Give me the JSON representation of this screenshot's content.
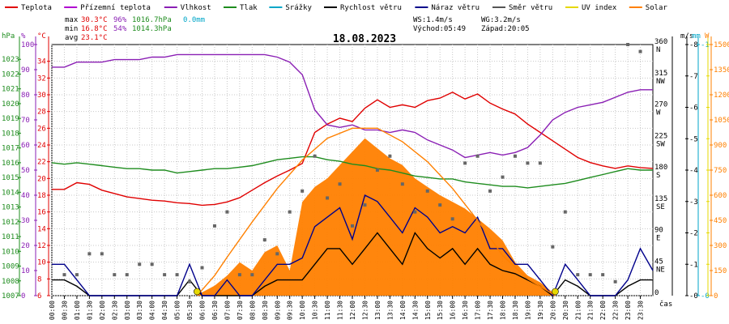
{
  "legend": [
    {
      "label": "Teplota",
      "color": "#e00000"
    },
    {
      "label": "Přízemní teplota",
      "color": "#b000d0"
    },
    {
      "label": "Vlhkost",
      "color": "#8a1fb4"
    },
    {
      "label": "Tlak",
      "color": "#1e8c1e"
    },
    {
      "label": "Srážky",
      "color": "#00a6c8"
    },
    {
      "label": "Rychlost větru",
      "color": "#000000"
    },
    {
      "label": "Náraz větru",
      "color": "#00008b"
    },
    {
      "label": "Směr větru",
      "color": "#555555"
    },
    {
      "label": "UV index",
      "color": "#e6d800"
    },
    {
      "label": "Solar",
      "color": "#ff8000"
    }
  ],
  "stats": {
    "max_label": "max",
    "max_temp": "30.3°C",
    "max_hum": "96%",
    "max_press": "1016.7hPa",
    "max_rain": "0.0mm",
    "min_label": "min",
    "min_temp": "16.8°C",
    "min_hum": "54%",
    "min_press": "1014.3hPa",
    "avg_label": "avg",
    "avg_temp": "23.1°C"
  },
  "wind_info": {
    "ws": "WS:1.4m/s",
    "wg": "WG:3.2m/s",
    "sunrise": "Východ:05:49",
    "sunset": "Západ:20:05"
  },
  "chart_data": {
    "type": "line",
    "title": "18.08.2023",
    "xlabel": "čas",
    "x_ticks": [
      "00:00",
      "00:30",
      "01:00",
      "01:30",
      "02:00",
      "02:30",
      "03:00",
      "03:30",
      "04:00",
      "04:30",
      "05:00",
      "05:30",
      "06:00",
      "06:30",
      "07:00",
      "07:30",
      "08:00",
      "08:30",
      "09:00",
      "09:30",
      "10:00",
      "10:30",
      "11:00",
      "11:30",
      "12:00",
      "12:30",
      "13:00",
      "13:30",
      "14:00",
      "14:30",
      "15:00",
      "15:30",
      "16:00",
      "16:30",
      "17:00",
      "17:30",
      "18:00",
      "18:30",
      "19:00",
      "19:30",
      "20:00",
      "20:30",
      "21:00",
      "21:30",
      "22:00",
      "22:30",
      "23:00",
      "23:30"
    ],
    "axes": {
      "hpa": {
        "label": "hPa",
        "color": "#1e8c1e",
        "range": [
          1007,
          1024
        ],
        "ticks": [
          1007,
          1008,
          1009,
          1010,
          1011,
          1012,
          1013,
          1014,
          1015,
          1016,
          1017,
          1018,
          1019,
          1020,
          1021,
          1022,
          1023
        ]
      },
      "pct": {
        "label": "%",
        "color": "#8a1fb4",
        "range": [
          0,
          100
        ],
        "ticks": [
          0,
          10,
          20,
          30,
          40,
          50,
          60,
          70,
          80,
          90,
          100
        ]
      },
      "temp": {
        "label": "°C",
        "color": "#e00000",
        "range": [
          6,
          36
        ],
        "ticks": [
          6,
          8,
          10,
          12,
          14,
          16,
          18,
          20,
          22,
          24,
          26,
          28,
          30,
          32,
          34
        ]
      },
      "deg": {
        "labels": [
          "0",
          "45 NE",
          "90 E",
          "135 SE",
          "180 S",
          "225 SW",
          "270 W",
          "315 NW",
          "360 N"
        ],
        "range": [
          0,
          360
        ]
      },
      "ms": {
        "label": "m/s",
        "color": "#000000",
        "range": [
          0,
          8
        ],
        "ticks": [
          0,
          1,
          2,
          3,
          4,
          5,
          6,
          7,
          8
        ]
      },
      "mm": {
        "label": "mm",
        "color": "#00a6c8",
        "range": [
          0,
          1
        ],
        "ticks": [
          0,
          1
        ]
      },
      "uv": {
        "color": "#e6d800",
        "range": [
          0,
          8
        ],
        "ticks": [
          0,
          1,
          2,
          3,
          4,
          5,
          6,
          7,
          8
        ]
      },
      "w": {
        "label": "W",
        "color": "#ff8000",
        "range": [
          0,
          1500
        ],
        "ticks": [
          0,
          150,
          300,
          450,
          600,
          750,
          900,
          1050,
          1200,
          1350,
          1500
        ]
      }
    },
    "series": [
      {
        "name": "Teplota",
        "axis": "temp",
        "color": "#e00000",
        "x": [
          0,
          0.5,
          1,
          1.5,
          2,
          2.5,
          3,
          3.5,
          4,
          4.5,
          5,
          5.5,
          6,
          6.5,
          7,
          7.5,
          8,
          8.5,
          9,
          9.5,
          10,
          10.5,
          11,
          11.5,
          12,
          12.5,
          13,
          13.5,
          14,
          14.5,
          15,
          15.5,
          16,
          16.5,
          17,
          17.5,
          18,
          18.5,
          19,
          19.5,
          20,
          20.5,
          21,
          21.5,
          22,
          22.5,
          23,
          23.5,
          24
        ],
        "y": [
          18.7,
          18.7,
          19.5,
          19.3,
          18.6,
          18.2,
          17.8,
          17.6,
          17.4,
          17.3,
          17.1,
          17.0,
          16.8,
          16.9,
          17.2,
          17.7,
          18.6,
          19.5,
          20.3,
          21.0,
          21.8,
          25.5,
          26.5,
          27.2,
          26.8,
          28.4,
          29.4,
          28.5,
          28.8,
          28.5,
          29.3,
          29.6,
          30.3,
          29.5,
          30.1,
          29.0,
          28.3,
          27.7,
          26.5,
          25.5,
          24.5,
          23.5,
          22.5,
          21.9,
          21.5,
          21.2,
          21.5,
          21.3,
          21.2
        ]
      },
      {
        "name": "Vlhkost",
        "axis": "pct",
        "color": "#8a1fb4",
        "x": [
          0,
          0.5,
          1,
          1.5,
          2,
          2.5,
          3,
          3.5,
          4,
          4.5,
          5,
          5.5,
          6,
          6.5,
          7,
          7.5,
          8,
          8.5,
          9,
          9.5,
          10,
          10.5,
          11,
          11.5,
          12,
          12.5,
          13,
          13.5,
          14,
          14.5,
          15,
          15.5,
          16,
          16.5,
          17,
          17.5,
          18,
          18.5,
          19,
          19.5,
          20,
          20.5,
          21,
          21.5,
          22,
          22.5,
          23,
          23.5,
          24
        ],
        "y": [
          91,
          91,
          93,
          93,
          93,
          94,
          94,
          94,
          95,
          95,
          96,
          96,
          96,
          96,
          96,
          96,
          96,
          96,
          95,
          93,
          88,
          74,
          68,
          67,
          68,
          66,
          66,
          65,
          66,
          65,
          62,
          60,
          58,
          55,
          56,
          57,
          56,
          57,
          59,
          64,
          70,
          73,
          75,
          76,
          77,
          79,
          81,
          82,
          82
        ]
      },
      {
        "name": "Tlak",
        "axis": "hpa",
        "color": "#1e8c1e",
        "x": [
          0,
          0.5,
          1,
          1.5,
          2,
          2.5,
          3,
          3.5,
          4,
          4.5,
          5,
          5.5,
          6,
          6.5,
          7,
          7.5,
          8,
          8.5,
          9,
          9.5,
          10,
          10.5,
          11,
          11.5,
          12,
          12.5,
          13,
          13.5,
          14,
          14.5,
          15,
          15.5,
          16,
          16.5,
          17,
          17.5,
          18,
          18.5,
          19,
          19.5,
          20,
          20.5,
          21,
          21.5,
          22,
          22.5,
          23,
          23.5,
          24
        ],
        "y": [
          1016.0,
          1015.9,
          1016.0,
          1015.9,
          1015.8,
          1015.7,
          1015.6,
          1015.6,
          1015.5,
          1015.5,
          1015.3,
          1015.4,
          1015.5,
          1015.6,
          1015.6,
          1015.7,
          1015.8,
          1016.0,
          1016.2,
          1016.3,
          1016.4,
          1016.4,
          1016.2,
          1016.1,
          1015.9,
          1015.8,
          1015.6,
          1015.5,
          1015.3,
          1015.1,
          1015.0,
          1014.9,
          1014.9,
          1014.7,
          1014.6,
          1014.5,
          1014.4,
          1014.4,
          1014.3,
          1014.4,
          1014.5,
          1014.6,
          1014.8,
          1015.0,
          1015.2,
          1015.4,
          1015.6,
          1015.5,
          1015.5
        ]
      },
      {
        "name": "Rychlost větru",
        "axis": "ms",
        "color": "#000000",
        "x": [
          0,
          0.5,
          1,
          1.5,
          2,
          2.5,
          3,
          3.5,
          4,
          4.5,
          5,
          5.5,
          6,
          6.5,
          7,
          7.5,
          8,
          8.5,
          9,
          9.5,
          10,
          10.5,
          11,
          11.5,
          12,
          12.5,
          13,
          13.5,
          14,
          14.5,
          15,
          15.5,
          16,
          16.5,
          17,
          17.5,
          18,
          18.5,
          19,
          19.5,
          20,
          20.5,
          21,
          21.5,
          22,
          22.5,
          23,
          23.5,
          24
        ],
        "y": [
          0.5,
          0.5,
          0.3,
          0,
          0,
          0,
          0,
          0,
          0,
          0,
          0,
          0.5,
          0,
          0,
          0,
          0,
          0,
          0.3,
          0.5,
          0.5,
          0.5,
          1.0,
          1.5,
          1.5,
          1.0,
          1.5,
          2.0,
          1.5,
          1.0,
          2.0,
          1.5,
          1.2,
          1.5,
          1.0,
          1.5,
          1.0,
          0.8,
          0.7,
          0.5,
          0.3,
          0,
          0.5,
          0.3,
          0,
          0,
          0,
          0.3,
          0.5,
          0.5
        ]
      },
      {
        "name": "Náraz větru",
        "axis": "ms",
        "color": "#00008b",
        "x": [
          0,
          0.5,
          1,
          1.5,
          2,
          2.5,
          3,
          3.5,
          4,
          4.5,
          5,
          5.5,
          6,
          6.5,
          7,
          7.5,
          8,
          8.5,
          9,
          9.5,
          10,
          10.5,
          11,
          11.5,
          12,
          12.5,
          13,
          13.5,
          14,
          14.5,
          15,
          15.5,
          16,
          16.5,
          17,
          17.5,
          18,
          18.5,
          19,
          19.5,
          20,
          20.5,
          21,
          21.5,
          22,
          22.5,
          23,
          23.5,
          24
        ],
        "y": [
          1.0,
          1.0,
          0.5,
          0,
          0,
          0,
          0,
          0,
          0,
          0,
          0,
          1.0,
          0,
          0,
          0.5,
          0,
          0,
          0.5,
          1.0,
          1.0,
          1.2,
          2.2,
          2.5,
          2.8,
          1.8,
          3.2,
          3.0,
          2.5,
          2.0,
          2.8,
          2.5,
          2.0,
          2.2,
          2.0,
          2.5,
          1.5,
          1.5,
          1.0,
          1.0,
          0.5,
          0,
          1.0,
          0.5,
          0,
          0,
          0,
          0.5,
          1.5,
          0.8
        ]
      },
      {
        "name": "Solar",
        "axis": "w",
        "color": "#ff8000",
        "fill": true,
        "x": [
          5.8,
          6,
          6.5,
          7,
          7.5,
          8,
          8.5,
          9,
          9.5,
          10,
          10.5,
          11,
          11.5,
          12,
          12.5,
          13,
          13.5,
          14,
          14.5,
          15,
          15.5,
          16,
          16.5,
          17,
          17.5,
          18,
          18.5,
          19,
          19.5,
          20,
          20.1
        ],
        "y": [
          0,
          20,
          60,
          120,
          200,
          150,
          260,
          300,
          150,
          560,
          650,
          700,
          780,
          860,
          940,
          880,
          820,
          780,
          700,
          650,
          600,
          560,
          520,
          460,
          400,
          330,
          200,
          120,
          80,
          20,
          0
        ]
      },
      {
        "name": "Solar (teoretický)",
        "axis": "w",
        "color": "#ff8000",
        "fill": false,
        "x": [
          5.8,
          6.5,
          7,
          8,
          9,
          10,
          11,
          12,
          13,
          14,
          15,
          16,
          17,
          18,
          19,
          20,
          20.1
        ],
        "y": [
          0,
          120,
          230,
          440,
          640,
          810,
          940,
          1000,
          1000,
          920,
          800,
          640,
          450,
          240,
          100,
          10,
          0
        ]
      }
    ],
    "scatter": {
      "name": "Směr větru",
      "axis": "deg",
      "color": "#666666",
      "x": [
        0.5,
        1,
        1.5,
        2,
        2.5,
        3,
        3.5,
        4,
        4.5,
        5,
        5.5,
        6,
        6.5,
        7,
        7.5,
        8,
        8.5,
        9,
        9.5,
        10,
        10.5,
        11,
        11.5,
        12,
        12.5,
        13,
        13.5,
        14,
        14.5,
        15,
        15.5,
        16,
        16.5,
        17,
        17.5,
        18,
        18.5,
        19,
        19.5,
        20,
        20.5,
        21,
        21.5,
        22,
        22.5,
        23,
        23.5
      ],
      "y": [
        30,
        30,
        60,
        60,
        30,
        30,
        45,
        45,
        30,
        30,
        20,
        40,
        100,
        120,
        30,
        30,
        80,
        60,
        120,
        150,
        200,
        140,
        160,
        100,
        130,
        180,
        200,
        160,
        120,
        150,
        130,
        110,
        190,
        200,
        150,
        170,
        200,
        190,
        190,
        70,
        120,
        30,
        30,
        30,
        20,
        360,
        350
      ]
    },
    "uv_points": {
      "name": "UV index",
      "axis": "uv",
      "color": "#e6d800",
      "x": [
        5.8,
        20.1
      ],
      "y": [
        0,
        0
      ]
    }
  }
}
